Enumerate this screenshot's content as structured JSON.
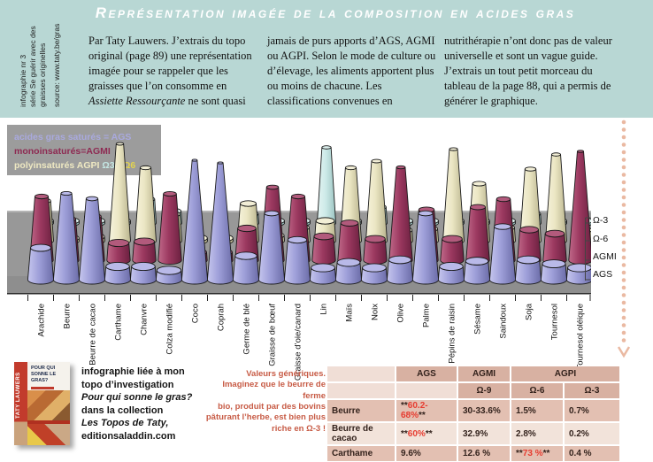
{
  "title": "Représentation imagée de la composition en acides gras",
  "sidebar": {
    "lines": [
      "infographie nr 3",
      "série Se guérir avec des",
      "graisses originelles"
    ],
    "source": "source: www.taty.be/gras"
  },
  "intro": {
    "col1_pre": "Par Taty Lauwers. J’extrais du topo original (page 89) une représentation imagée pour se rappeler que les graisses que l’on consomme en ",
    "col1_italic": "Assiette Ressourçante",
    "col1_post": " ne sont quasi",
    "col2": "jamais de purs apports d’AGS, AGMI ou AGPI. Selon le mode de culture ou d’élevage, les aliments apportent plus ou moins de chacune. Les classifications convenues en",
    "col3": "nutrithérapie n’ont donc pas de valeur universelle et sont un vague guide. J’extrais un tout petit morceau du tableau de la page 88, qui a permis de générer le graphique."
  },
  "legend": {
    "line1": "acides gras saturés = AGS",
    "line2": "monoinsaturés=AGMI",
    "line3_pre": "polyinsaturés AGPI ",
    "line3_o3": "Ω3",
    "line3_dash": " - ",
    "line3_o6": "Ω6"
  },
  "axis_right": [
    "Ω-3",
    "Ω-6",
    "AGMI",
    "AGS"
  ],
  "chart_data": {
    "type": "bar",
    "style": "3d-cones",
    "unit": "%",
    "ylim": [
      0,
      100
    ],
    "categories": [
      "Arachide",
      "Beurre",
      "Beurre de cacao",
      "Carthame",
      "Chanvre",
      "Colza modifié",
      "Coco",
      "Coprah",
      "Germe de blé",
      "Graisse de bœuf",
      "Graisse d’oie/canard",
      "Lin",
      "Maïs",
      "Noix",
      "Olive",
      "Palme",
      "Pépins de raisin",
      "Sésame",
      "Saindoux",
      "Soja",
      "Tournesol",
      "Tournesol oléique"
    ],
    "series": [
      {
        "name": "AGS",
        "color": "#9d9ed8",
        "values": [
          24,
          65,
          61,
          10,
          10,
          7,
          90,
          88,
          18,
          50,
          30,
          9,
          13,
          9,
          15,
          50,
          10,
          14,
          40,
          15,
          12,
          9
        ]
      },
      {
        "name": "AGMI",
        "color": "#9c3960",
        "values": [
          48,
          31,
          33,
          13,
          14,
          50,
          6,
          6,
          24,
          55,
          48,
          18,
          28,
          16,
          70,
          38,
          16,
          40,
          46,
          23,
          20,
          82
        ]
      },
      {
        "name": "Ω-6",
        "color": "#ebe6c3",
        "values": [
          30,
          2,
          3,
          73,
          55,
          20,
          2,
          2,
          28,
          4,
          10,
          15,
          55,
          60,
          8,
          9,
          69,
          43,
          10,
          54,
          65,
          8
        ]
      },
      {
        "name": "Ω-3",
        "color": "#cdeae8",
        "values": [
          1,
          1,
          1,
          1,
          18,
          9,
          0,
          0,
          7,
          1,
          1,
          57,
          1,
          12,
          1,
          0.5,
          0.5,
          0.5,
          1,
          7,
          0.5,
          0.5
        ]
      }
    ]
  },
  "note": "Valeurs génériques.\nImaginez que le beurre de ferme\nbio, produit par des bovins\npâturant l’herbe, est bien plus\nriche en Ω-3 !",
  "book": {
    "spine": "TATY LAUWERS",
    "cover_title": "POUR QUI SONNE LE GRAS?"
  },
  "credit": {
    "lines": [
      {
        "text": "infographie liée à mon",
        "italic": false
      },
      {
        "text": "topo d’investigation",
        "italic": false
      },
      {
        "text": "Pour qui sonne le gras?",
        "italic": true
      },
      {
        "text": "dans la collection",
        "italic": false
      },
      {
        "text": "Les Topos de Taty,",
        "italic": true
      },
      {
        "text": "editionsaladdin.com",
        "italic": false
      }
    ]
  },
  "table": {
    "col_groups": [
      {
        "label": "AGS",
        "span": 1
      },
      {
        "label": "AGMI",
        "span": 1
      },
      {
        "label": "AGPI",
        "span": 2
      }
    ],
    "sub_headers": [
      "Ω-9",
      "Ω-6",
      "Ω-3"
    ],
    "rows": [
      {
        "label": "Beurre",
        "cells": [
          "**60.2-68%**",
          "30-33.6%",
          "1.5%",
          "0.7%"
        ]
      },
      {
        "label": "Beurre de cacao",
        "cells": [
          "**60%**",
          "32.9%",
          "2.8%",
          "0.2%"
        ]
      },
      {
        "label": "Carthame",
        "cells": [
          "9.6%",
          "12.6 %",
          "**73 %**",
          "0.4 %"
        ]
      }
    ]
  },
  "colors": {
    "teal_band": "#b8d7d4",
    "platform": "#989898",
    "ags": "#9d9ed8",
    "agmi": "#9c3960",
    "omega6": "#ebe6c3",
    "omega3": "#cdeae8",
    "table_header": "#d8b1a2",
    "table_row_dark": "#e3c0b2",
    "table_row_light": "#f2e3da",
    "red_value": "#e63c30",
    "note_red": "#c75b45",
    "dotted_arrow": "#eab9a2"
  }
}
